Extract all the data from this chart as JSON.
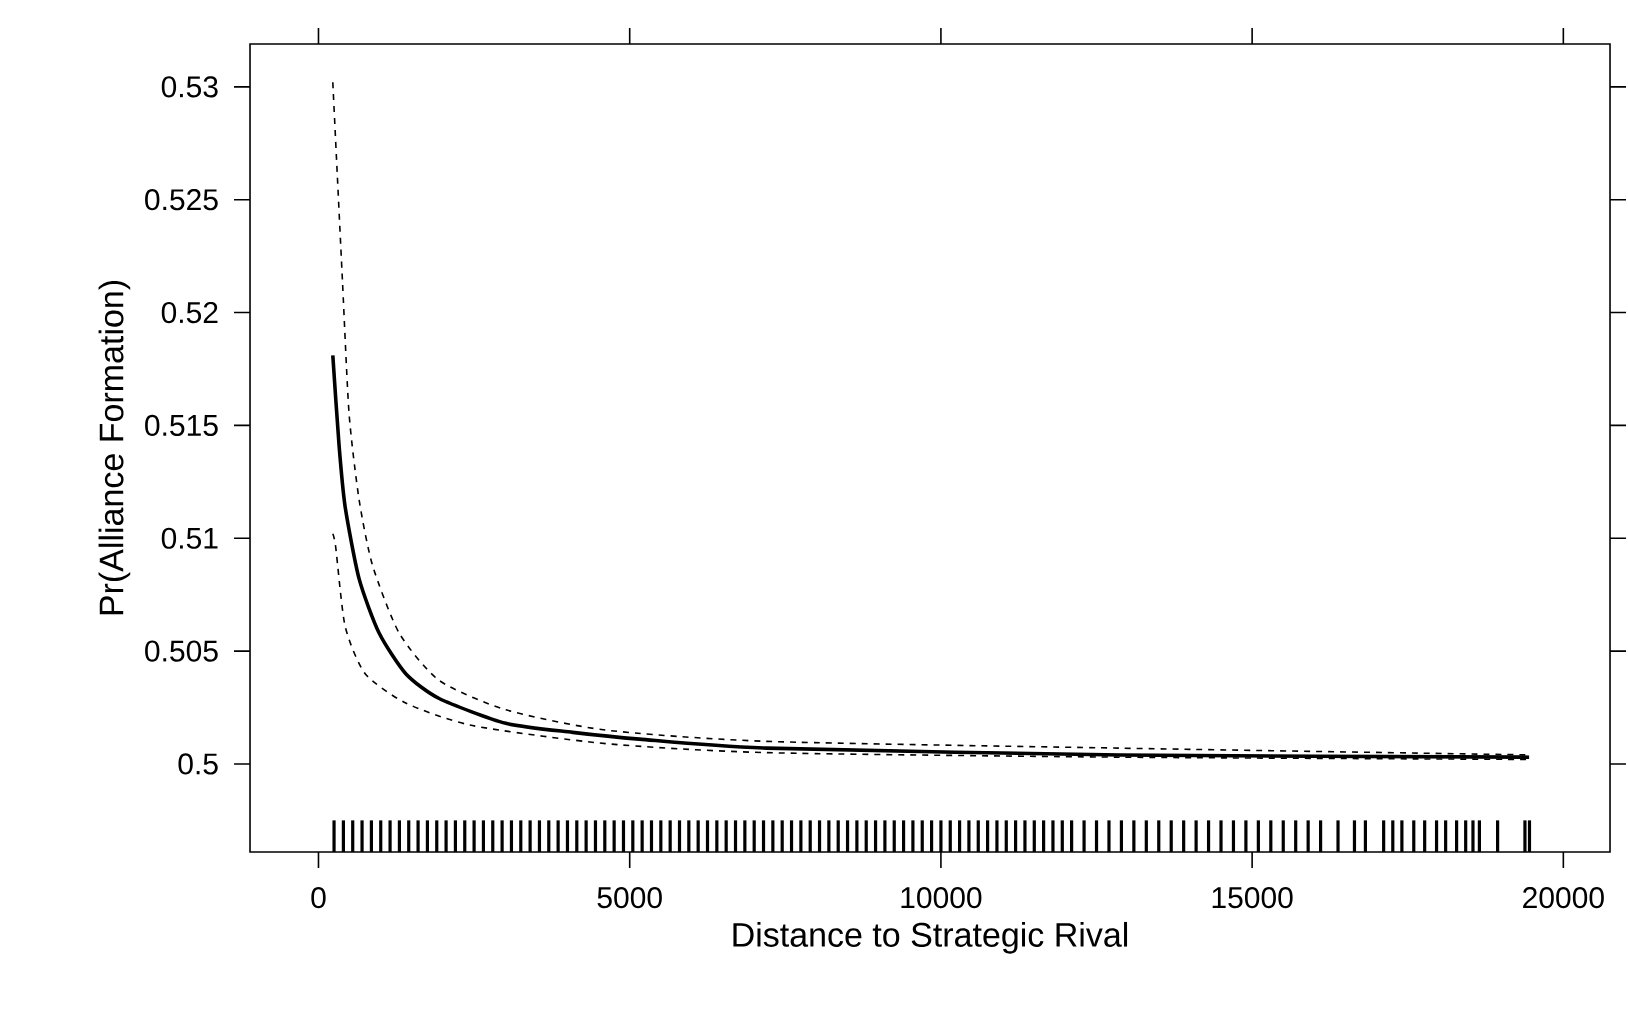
{
  "chart_data": {
    "type": "line",
    "xlabel": "Distance to Strategic Rival",
    "ylabel": "Pr(Alliance Formation)",
    "xlim": [
      -1100,
      20750
    ],
    "ylim": [
      0.4961,
      0.5319
    ],
    "xticks": [
      0,
      5000,
      10000,
      15000,
      20000
    ],
    "yticks": [
      0.5,
      0.505,
      0.51,
      0.515,
      0.52,
      0.525,
      0.53
    ],
    "series": [
      {
        "color": "#000000",
        "line_style": "solid",
        "x": [
          230,
          331,
          428,
          653,
          974,
          1402,
          1939,
          3010,
          4083,
          5154,
          7210,
          12880,
          19450
        ],
        "values": [
          0.5181,
          0.5141,
          0.5114,
          0.5082,
          0.5058,
          0.504,
          0.5029,
          0.5018,
          0.5014,
          0.5011,
          0.5007,
          0.5004,
          0.5003
        ]
      },
      {
        "color": "#000000",
        "line_style": "dashed",
        "x": [
          230,
          385,
          492,
          653,
          868,
          1296,
          1939,
          3010,
          4617,
          7210,
          12880,
          19450
        ],
        "values": [
          0.5302,
          0.5214,
          0.5155,
          0.5117,
          0.5088,
          0.5058,
          0.5037,
          0.5024,
          0.5015,
          0.501,
          0.5007,
          0.5004
        ]
      },
      {
        "color": "#000000",
        "line_style": "dashed",
        "x": [
          230,
          277,
          428,
          750,
          1402,
          2474,
          4617,
          7210,
          12880,
          19450
        ],
        "values": [
          0.5102,
          0.5096,
          0.5061,
          0.504,
          0.5027,
          0.5017,
          0.5009,
          0.5005,
          0.5003,
          0.5002
        ]
      },
      {
        "type": "bar",
        "color": "#000000",
        "x": [
          250,
          400,
          550,
          700,
          850,
          1000,
          1150,
          1300,
          1450,
          1600,
          1750,
          1900,
          2050,
          2200,
          2350,
          2500,
          2650,
          2800,
          2950,
          3100,
          3250,
          3400,
          3550,
          3700,
          3850,
          4000,
          4150,
          4300,
          4450,
          4600,
          4750,
          4900,
          5050,
          5200,
          5350,
          5500,
          5650,
          5800,
          5950,
          6100,
          6250,
          6400,
          6550,
          6700,
          6850,
          7000,
          7150,
          7300,
          7450,
          7600,
          7750,
          7900,
          8050,
          8200,
          8350,
          8500,
          8650,
          8800,
          8950,
          9100,
          9250,
          9400,
          9550,
          9700,
          9850,
          10000,
          10150,
          10300,
          10450,
          10600,
          10750,
          10900,
          11050,
          11200,
          11350,
          11500,
          11650,
          11800,
          11950,
          12100,
          12300,
          12500,
          12700,
          12900,
          13100,
          13300,
          13500,
          13700,
          13900,
          14100,
          14300,
          14500,
          14700,
          14900,
          15100,
          15300,
          15500,
          15700,
          15900,
          16100,
          16380,
          16644,
          16820,
          17113,
          17260,
          17406,
          17597,
          17772,
          17963,
          18109,
          18285,
          18431,
          18548,
          18651,
          18944,
          19383,
          19456
        ],
        "values": [
          0.4975,
          0.4975,
          0.4975,
          0.4975,
          0.4975,
          0.4975,
          0.4975,
          0.4975,
          0.4975,
          0.4975,
          0.4975,
          0.4975,
          0.4975,
          0.4975,
          0.4975,
          0.4975,
          0.4975,
          0.4975,
          0.4975,
          0.4975,
          0.4975,
          0.4975,
          0.4975,
          0.4975,
          0.4975,
          0.4975,
          0.4975,
          0.4975,
          0.4975,
          0.4975,
          0.4975,
          0.4975,
          0.4975,
          0.4975,
          0.4975,
          0.4975,
          0.4975,
          0.4975,
          0.4975,
          0.4975,
          0.4975,
          0.4975,
          0.4975,
          0.4975,
          0.4975,
          0.4975,
          0.4975,
          0.4975,
          0.4975,
          0.4975,
          0.4975,
          0.4975,
          0.4975,
          0.4975,
          0.4975,
          0.4975,
          0.4975,
          0.4975,
          0.4975,
          0.4975,
          0.4975,
          0.4975,
          0.4975,
          0.4975,
          0.4975,
          0.4975,
          0.4975,
          0.4975,
          0.4975,
          0.4975,
          0.4975,
          0.4975,
          0.4975,
          0.4975,
          0.4975,
          0.4975,
          0.4975,
          0.4975,
          0.4975,
          0.4975,
          0.4975,
          0.4975,
          0.4975,
          0.4975,
          0.4975,
          0.4975,
          0.4975,
          0.4975,
          0.4975,
          0.4975,
          0.4975,
          0.4975,
          0.4975,
          0.4975,
          0.4975,
          0.4975,
          0.4975,
          0.4975,
          0.4975,
          0.4975,
          0.4975,
          0.4975,
          0.4975,
          0.4975,
          0.4975,
          0.4975,
          0.4975,
          0.4975,
          0.4975,
          0.4975,
          0.4975,
          0.4975,
          0.4975,
          0.4975,
          0.4975,
          0.4975,
          0.4975
        ]
      }
    ]
  }
}
